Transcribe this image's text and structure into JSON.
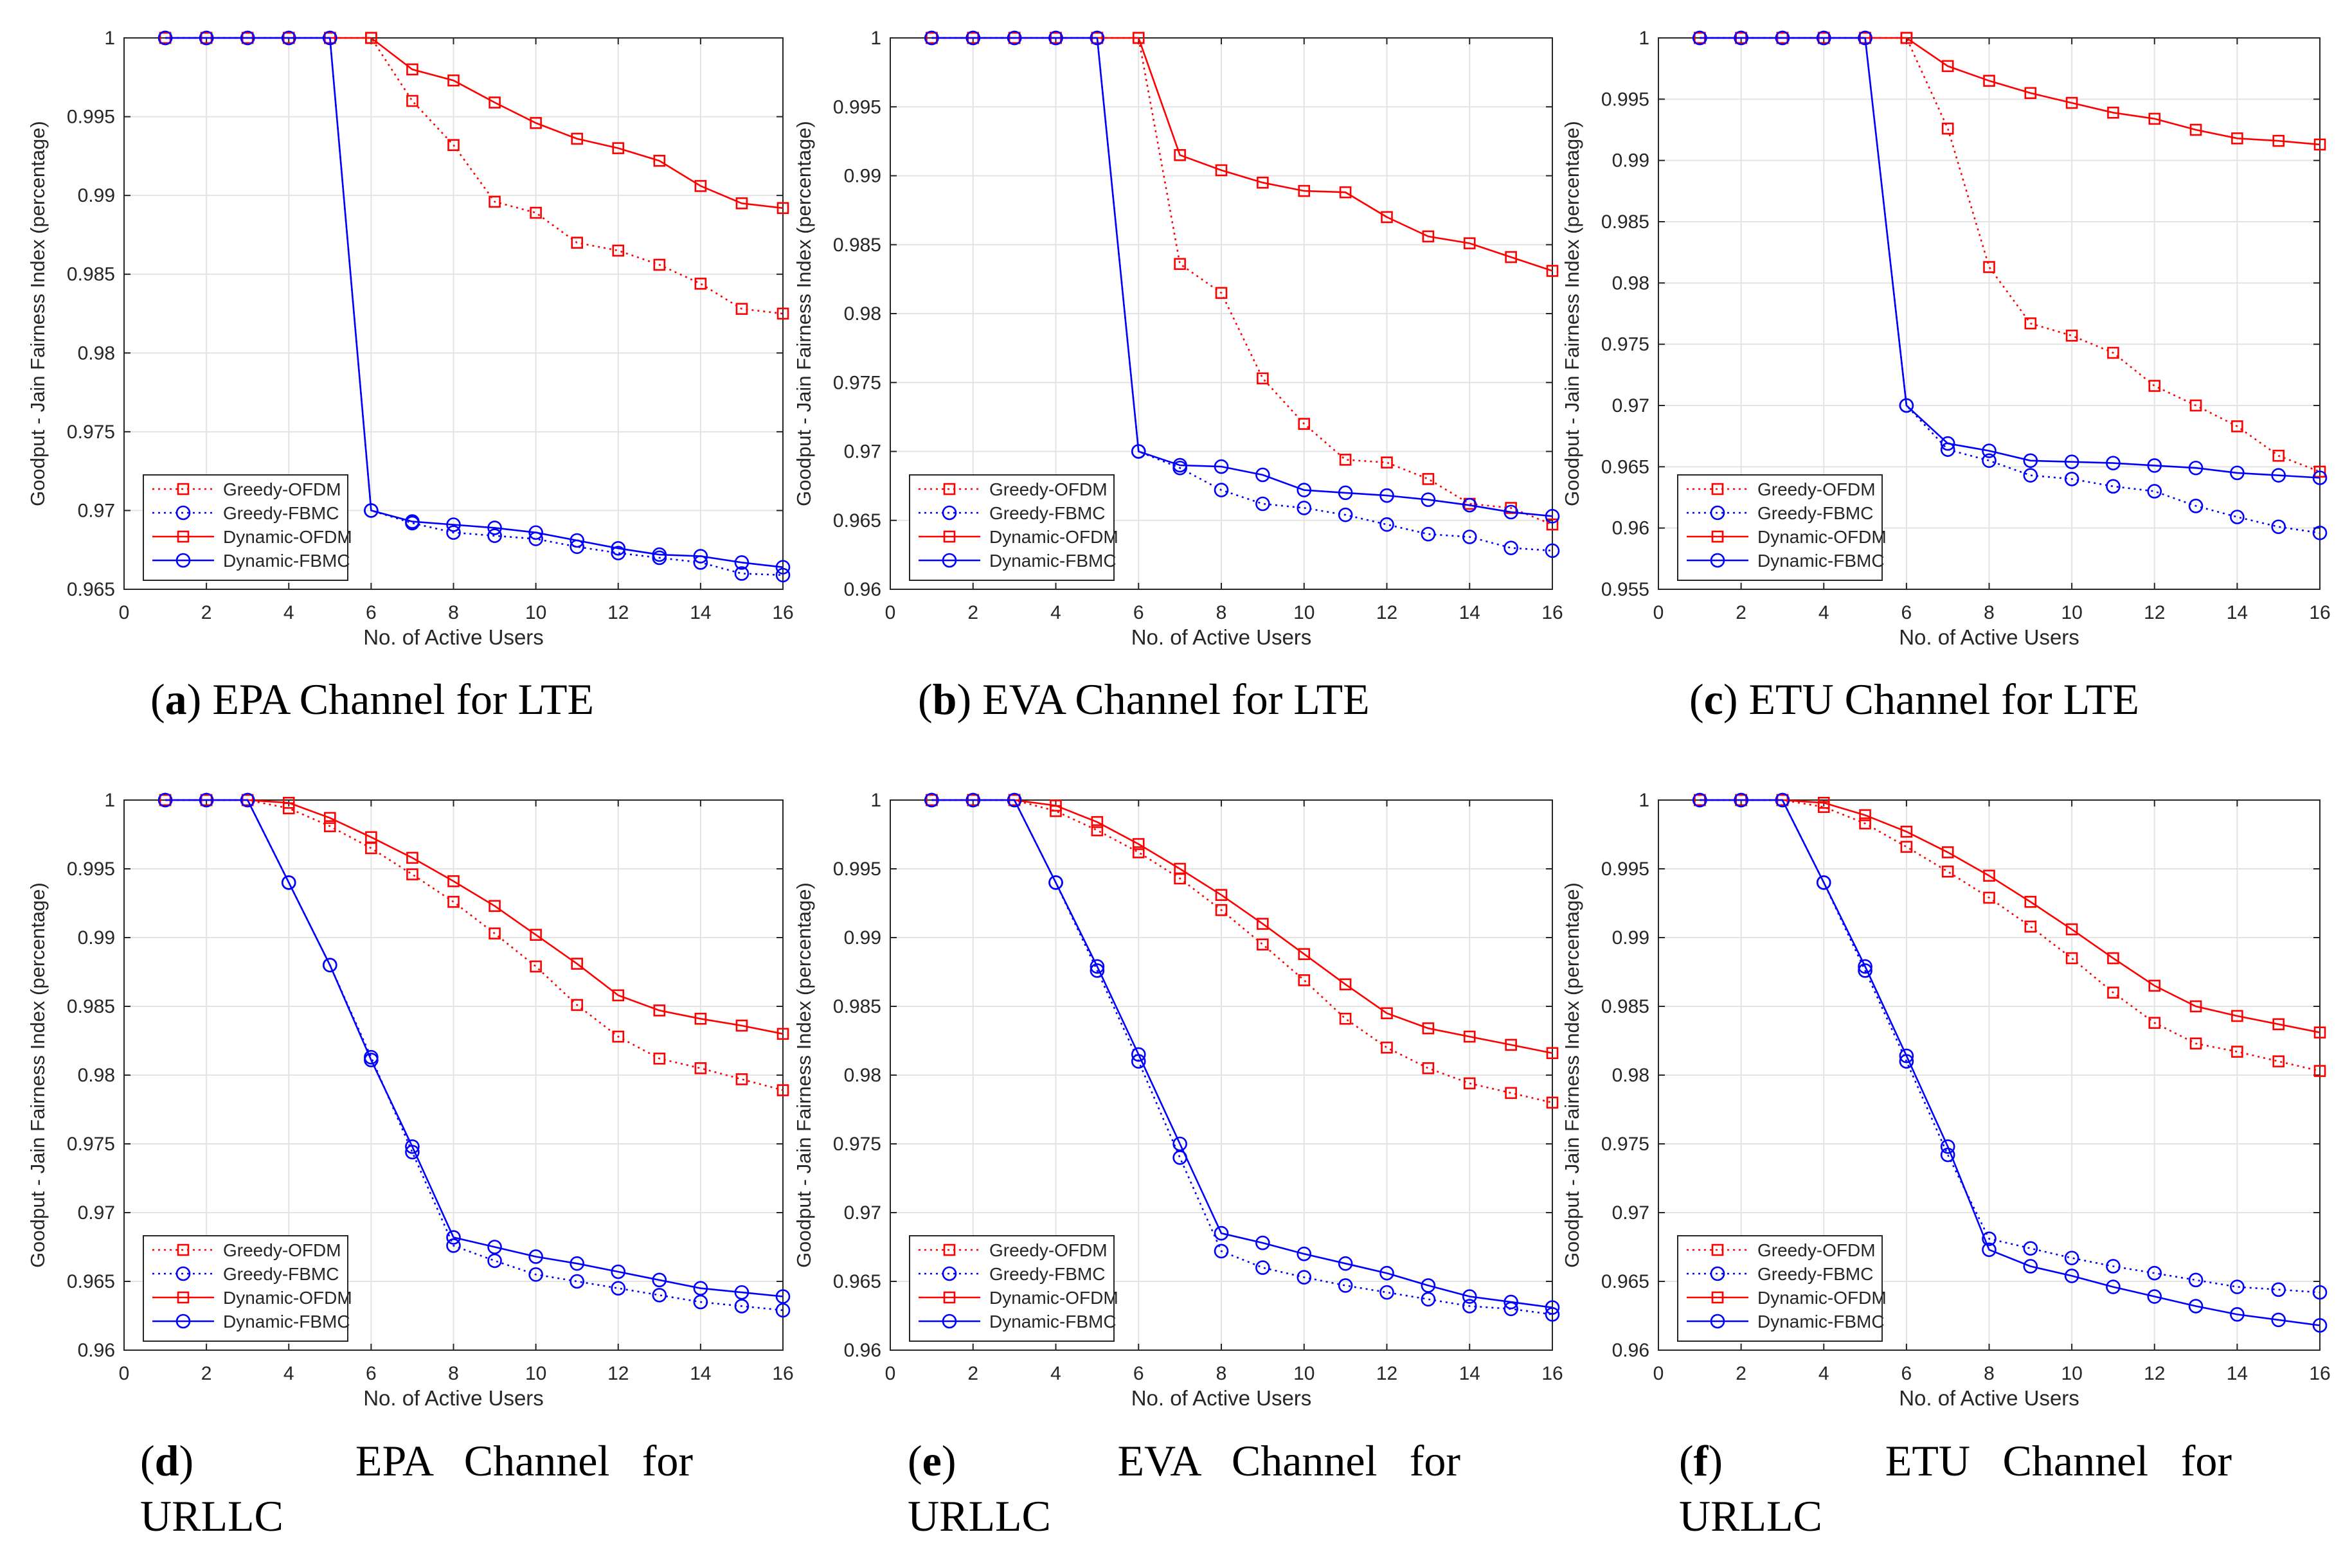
{
  "chart_data": [
    {
      "id": "a",
      "type": "line",
      "caption_label": "a",
      "caption_text": "EPA Channel for LTE",
      "xlabel": "No. of Active Users",
      "ylabel": "Goodput - Jain Fairness Index (percentage)",
      "xlim": [
        0,
        16
      ],
      "ylim": [
        0.965,
        1
      ],
      "xticks": [
        "0",
        "2",
        "4",
        "6",
        "8",
        "10",
        "12",
        "14",
        "16"
      ],
      "yticks": [
        "0.965",
        "0.97",
        "0.975",
        "0.98",
        "0.985",
        "0.99",
        "0.995",
        "1"
      ],
      "grid": true,
      "legend_position": "bottom-left",
      "x": [
        1,
        2,
        3,
        4,
        5,
        6,
        7,
        8,
        9,
        10,
        11,
        12,
        13,
        14,
        15,
        16
      ],
      "series": [
        {
          "name": "Greedy-OFDM",
          "color": "#ff0000",
          "style": "dotted",
          "marker": "square",
          "values": [
            1,
            1,
            1,
            1,
            1,
            1,
            0.996,
            0.9932,
            0.9896,
            0.9889,
            0.987,
            0.9865,
            0.9856,
            0.9844,
            0.9828,
            0.9825
          ]
        },
        {
          "name": "Greedy-FBMC",
          "color": "#0000ff",
          "style": "dotted",
          "marker": "circle",
          "values": [
            1,
            1,
            1,
            1,
            1,
            0.97,
            0.9692,
            0.9686,
            0.9684,
            0.9682,
            0.9677,
            0.9673,
            0.967,
            0.9667,
            0.966,
            0.9659
          ]
        },
        {
          "name": "Dynamic-OFDM",
          "color": "#ff0000",
          "style": "solid",
          "marker": "square",
          "values": [
            1,
            1,
            1,
            1,
            1,
            1,
            0.998,
            0.9973,
            0.9959,
            0.9946,
            0.9936,
            0.993,
            0.9922,
            0.9906,
            0.9895,
            0.9892
          ]
        },
        {
          "name": "Dynamic-FBMC",
          "color": "#0000ff",
          "style": "solid",
          "marker": "circle",
          "values": [
            1,
            1,
            1,
            1,
            1,
            0.97,
            0.9693,
            0.9691,
            0.9689,
            0.9686,
            0.9681,
            0.9676,
            0.9672,
            0.9671,
            0.9667,
            0.9664
          ]
        }
      ]
    },
    {
      "id": "b",
      "type": "line",
      "caption_label": "b",
      "caption_text": "EVA Channel for LTE",
      "xlabel": "No. of Active Users",
      "ylabel": "Goodput - Jain Fairness Index (percentage)",
      "xlim": [
        0,
        16
      ],
      "ylim": [
        0.96,
        1
      ],
      "xticks": [
        "0",
        "2",
        "4",
        "6",
        "8",
        "10",
        "12",
        "14",
        "16"
      ],
      "yticks": [
        "0.96",
        "0.965",
        "0.97",
        "0.975",
        "0.98",
        "0.985",
        "0.99",
        "0.995",
        "1"
      ],
      "grid": true,
      "legend_position": "bottom-left",
      "x": [
        1,
        2,
        3,
        4,
        5,
        6,
        7,
        8,
        9,
        10,
        11,
        12,
        13,
        14,
        15,
        16
      ],
      "series": [
        {
          "name": "Greedy-OFDM",
          "color": "#ff0000",
          "style": "dotted",
          "marker": "square",
          "values": [
            1,
            1,
            1,
            1,
            1,
            1,
            0.9836,
            0.9815,
            0.9753,
            0.972,
            0.9694,
            0.9692,
            0.968,
            0.9662,
            0.9659,
            0.9647
          ]
        },
        {
          "name": "Greedy-FBMC",
          "color": "#0000ff",
          "style": "dotted",
          "marker": "circle",
          "values": [
            1,
            1,
            1,
            1,
            1,
            0.97,
            0.9688,
            0.9672,
            0.9662,
            0.9659,
            0.9654,
            0.9647,
            0.964,
            0.9638,
            0.963,
            0.9628
          ]
        },
        {
          "name": "Dynamic-OFDM",
          "color": "#ff0000",
          "style": "solid",
          "marker": "square",
          "values": [
            1,
            1,
            1,
            1,
            1,
            1,
            0.9915,
            0.9904,
            0.9895,
            0.9889,
            0.9888,
            0.987,
            0.9856,
            0.9851,
            0.9841,
            0.9831
          ]
        },
        {
          "name": "Dynamic-FBMC",
          "color": "#0000ff",
          "style": "solid",
          "marker": "circle",
          "values": [
            1,
            1,
            1,
            1,
            1,
            0.97,
            0.969,
            0.9689,
            0.9683,
            0.9672,
            0.967,
            0.9668,
            0.9665,
            0.9661,
            0.9656,
            0.9653
          ]
        }
      ]
    },
    {
      "id": "c",
      "type": "line",
      "caption_label": "c",
      "caption_text": "ETU Channel for LTE",
      "xlabel": "No. of Active Users",
      "ylabel": "Goodput - Jain Fairness Index (percentage)",
      "xlim": [
        0,
        16
      ],
      "ylim": [
        0.955,
        1
      ],
      "xticks": [
        "0",
        "2",
        "4",
        "6",
        "8",
        "10",
        "12",
        "14",
        "16"
      ],
      "yticks": [
        "0.955",
        "0.96",
        "0.965",
        "0.97",
        "0.975",
        "0.98",
        "0.985",
        "0.99",
        "0.995",
        "1"
      ],
      "grid": true,
      "legend_position": "bottom-left",
      "x": [
        1,
        2,
        3,
        4,
        5,
        6,
        7,
        8,
        9,
        10,
        11,
        12,
        13,
        14,
        15,
        16
      ],
      "series": [
        {
          "name": "Greedy-OFDM",
          "color": "#ff0000",
          "style": "dotted",
          "marker": "square",
          "values": [
            1,
            1,
            1,
            1,
            1,
            1,
            0.9926,
            0.9813,
            0.9767,
            0.9757,
            0.9743,
            0.9716,
            0.97,
            0.9683,
            0.9659,
            0.9646
          ]
        },
        {
          "name": "Greedy-FBMC",
          "color": "#0000ff",
          "style": "dotted",
          "marker": "circle",
          "values": [
            1,
            1,
            1,
            1,
            1,
            0.97,
            0.9664,
            0.9655,
            0.9643,
            0.964,
            0.9634,
            0.963,
            0.9618,
            0.9609,
            0.9601,
            0.9596
          ]
        },
        {
          "name": "Dynamic-OFDM",
          "color": "#ff0000",
          "style": "solid",
          "marker": "square",
          "values": [
            1,
            1,
            1,
            1,
            1,
            1,
            0.9977,
            0.9965,
            0.9955,
            0.9947,
            0.9939,
            0.9934,
            0.9925,
            0.9918,
            0.9916,
            0.9913
          ]
        },
        {
          "name": "Dynamic-FBMC",
          "color": "#0000ff",
          "style": "solid",
          "marker": "circle",
          "values": [
            1,
            1,
            1,
            1,
            1,
            0.97,
            0.9669,
            0.9663,
            0.9655,
            0.9654,
            0.9653,
            0.9651,
            0.9649,
            0.9645,
            0.9643,
            0.9641
          ]
        }
      ]
    },
    {
      "id": "d",
      "type": "line",
      "caption_label": "d",
      "caption_text": "EPA Channel for URLLC",
      "xlabel": "No. of Active Users",
      "ylabel": "Goodput - Jain Fairness Index (percentage)",
      "xlim": [
        0,
        16
      ],
      "ylim": [
        0.96,
        1
      ],
      "xticks": [
        "0",
        "2",
        "4",
        "6",
        "8",
        "10",
        "12",
        "14",
        "16"
      ],
      "yticks": [
        "0.96",
        "0.965",
        "0.97",
        "0.975",
        "0.98",
        "0.985",
        "0.99",
        "0.995",
        "1"
      ],
      "grid": true,
      "legend_position": "bottom-left",
      "x": [
        1,
        2,
        3,
        4,
        5,
        6,
        7,
        8,
        9,
        10,
        11,
        12,
        13,
        14,
        15,
        16
      ],
      "series": [
        {
          "name": "Greedy-OFDM",
          "color": "#ff0000",
          "style": "dotted",
          "marker": "square",
          "values": [
            1,
            1,
            1,
            0.9994,
            0.9981,
            0.9965,
            0.9946,
            0.9926,
            0.9903,
            0.9879,
            0.9851,
            0.9828,
            0.9812,
            0.9805,
            0.9797,
            0.9789
          ]
        },
        {
          "name": "Greedy-FBMC",
          "color": "#0000ff",
          "style": "dotted",
          "marker": "circle",
          "values": [
            1,
            1,
            1,
            0.994,
            0.988,
            0.9813,
            0.9744,
            0.9676,
            0.9665,
            0.9655,
            0.965,
            0.9645,
            0.964,
            0.9635,
            0.9632,
            0.9629
          ]
        },
        {
          "name": "Dynamic-OFDM",
          "color": "#ff0000",
          "style": "solid",
          "marker": "square",
          "values": [
            1,
            1,
            1,
            0.9998,
            0.9987,
            0.9973,
            0.9958,
            0.9941,
            0.9923,
            0.9902,
            0.9881,
            0.9858,
            0.9847,
            0.9841,
            0.9836,
            0.983
          ]
        },
        {
          "name": "Dynamic-FBMC",
          "color": "#0000ff",
          "style": "solid",
          "marker": "circle",
          "values": [
            1,
            1,
            1,
            0.994,
            0.988,
            0.9811,
            0.9748,
            0.9682,
            0.9675,
            0.9668,
            0.9663,
            0.9657,
            0.9651,
            0.9645,
            0.9642,
            0.9639
          ]
        }
      ]
    },
    {
      "id": "e",
      "type": "line",
      "caption_label": "e",
      "caption_text": "EVA Channel for URLLC",
      "xlabel": "No. of Active Users",
      "ylabel": "Goodput - Jain Fairness Index (percentage)",
      "xlim": [
        0,
        16
      ],
      "ylim": [
        0.96,
        1
      ],
      "xticks": [
        "0",
        "2",
        "4",
        "6",
        "8",
        "10",
        "12",
        "14",
        "16"
      ],
      "yticks": [
        "0.96",
        "0.965",
        "0.97",
        "0.975",
        "0.98",
        "0.985",
        "0.99",
        "0.995",
        "1"
      ],
      "grid": true,
      "legend_position": "bottom-left",
      "x": [
        1,
        2,
        3,
        4,
        5,
        6,
        7,
        8,
        9,
        10,
        11,
        12,
        13,
        14,
        15,
        16
      ],
      "series": [
        {
          "name": "Greedy-OFDM",
          "color": "#ff0000",
          "style": "dotted",
          "marker": "square",
          "values": [
            1,
            1,
            1,
            0.9992,
            0.9978,
            0.9962,
            0.9943,
            0.992,
            0.9895,
            0.9869,
            0.9841,
            0.982,
            0.9805,
            0.9794,
            0.9787,
            0.978
          ]
        },
        {
          "name": "Greedy-FBMC",
          "color": "#0000ff",
          "style": "dotted",
          "marker": "circle",
          "values": [
            1,
            1,
            1,
            0.994,
            0.9876,
            0.981,
            0.974,
            0.9672,
            0.966,
            0.9653,
            0.9647,
            0.9642,
            0.9637,
            0.9632,
            0.963,
            0.9626
          ]
        },
        {
          "name": "Dynamic-OFDM",
          "color": "#ff0000",
          "style": "solid",
          "marker": "square",
          "values": [
            1,
            1,
            1,
            0.9996,
            0.9984,
            0.9968,
            0.995,
            0.9931,
            0.991,
            0.9888,
            0.9866,
            0.9845,
            0.9834,
            0.9828,
            0.9822,
            0.9816
          ]
        },
        {
          "name": "Dynamic-FBMC",
          "color": "#0000ff",
          "style": "solid",
          "marker": "circle",
          "values": [
            1,
            1,
            1,
            0.994,
            0.9879,
            0.9815,
            0.975,
            0.9685,
            0.9678,
            0.967,
            0.9663,
            0.9656,
            0.9647,
            0.9639,
            0.9635,
            0.9631
          ]
        }
      ]
    },
    {
      "id": "f",
      "type": "line",
      "caption_label": "f",
      "caption_text": "ETU Channel for URLLC",
      "xlabel": "No. of Active Users",
      "ylabel": "Goodput - Jain Fairness Index (percentage)",
      "xlim": [
        0,
        16
      ],
      "ylim": [
        0.96,
        1
      ],
      "xticks": [
        "0",
        "2",
        "4",
        "6",
        "8",
        "10",
        "12",
        "14",
        "16"
      ],
      "yticks": [
        "0.96",
        "0.965",
        "0.97",
        "0.975",
        "0.98",
        "0.985",
        "0.99",
        "0.995",
        "1"
      ],
      "grid": true,
      "legend_position": "bottom-left",
      "x": [
        1,
        2,
        3,
        4,
        5,
        6,
        7,
        8,
        9,
        10,
        11,
        12,
        13,
        14,
        15,
        16
      ],
      "series": [
        {
          "name": "Greedy-OFDM",
          "color": "#ff0000",
          "style": "dotted",
          "marker": "square",
          "values": [
            1,
            1,
            1,
            0.9995,
            0.9983,
            0.9966,
            0.9948,
            0.9929,
            0.9908,
            0.9885,
            0.986,
            0.9838,
            0.9823,
            0.9817,
            0.981,
            0.9803
          ]
        },
        {
          "name": "Greedy-FBMC",
          "color": "#0000ff",
          "style": "dotted",
          "marker": "circle",
          "values": [
            1,
            1,
            1,
            0.994,
            0.9876,
            0.981,
            0.9742,
            0.9681,
            0.9674,
            0.9667,
            0.9661,
            0.9656,
            0.9651,
            0.9646,
            0.9644,
            0.9642
          ]
        },
        {
          "name": "Dynamic-OFDM",
          "color": "#ff0000",
          "style": "solid",
          "marker": "square",
          "values": [
            1,
            1,
            1,
            0.9998,
            0.9989,
            0.9977,
            0.9962,
            0.9945,
            0.9926,
            0.9906,
            0.9885,
            0.9865,
            0.985,
            0.9843,
            0.9837,
            0.9831
          ]
        },
        {
          "name": "Dynamic-FBMC",
          "color": "#0000ff",
          "style": "solid",
          "marker": "circle",
          "values": [
            1,
            1,
            1,
            0.994,
            0.9879,
            0.9814,
            0.9748,
            0.9673,
            0.9661,
            0.9654,
            0.9646,
            0.9639,
            0.9632,
            0.9626,
            0.9622,
            0.9618
          ]
        }
      ]
    }
  ]
}
